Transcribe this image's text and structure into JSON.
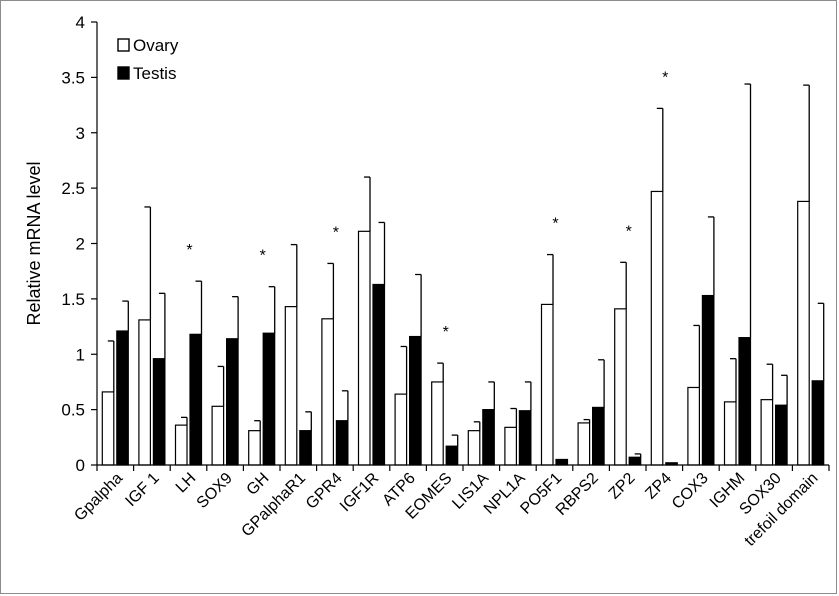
{
  "chart_data": {
    "type": "bar",
    "ylabel": "Relative mRNA  level",
    "ylim": [
      0,
      4
    ],
    "yticks": [
      "0",
      "0.5",
      "1",
      "1.5",
      "2",
      "2.5",
      "3",
      "3.5",
      "4"
    ],
    "grid": false,
    "legend_position": "top-left",
    "categories": [
      "Gpalpha",
      "IGF 1",
      "LH",
      "SOX9",
      "GH",
      "GPalphaR1",
      "GPR4",
      "IGF1R",
      "ATP6",
      "EOMES",
      "LIS1A",
      "NPL1A",
      "PO5F1",
      "RBPS2",
      "ZP2",
      "ZP4",
      "COX3",
      "IGHM",
      "SOX30",
      "trefoil domain"
    ],
    "series": [
      {
        "name": "Ovary",
        "fill": "#ffffff",
        "values": [
          0.66,
          1.31,
          0.36,
          0.53,
          0.31,
          1.43,
          1.32,
          2.11,
          0.64,
          0.75,
          0.31,
          0.34,
          1.45,
          0.38,
          1.41,
          2.47,
          0.7,
          0.57,
          0.59,
          2.38
        ],
        "errors": [
          0.46,
          1.02,
          0.07,
          0.36,
          0.09,
          0.56,
          0.5,
          0.49,
          0.43,
          0.17,
          0.08,
          0.17,
          0.45,
          0.03,
          0.42,
          0.75,
          0.56,
          0.39,
          0.32,
          1.05
        ]
      },
      {
        "name": "Testis",
        "fill": "#000000",
        "values": [
          1.21,
          0.96,
          1.18,
          1.14,
          1.19,
          0.31,
          0.4,
          1.63,
          1.16,
          0.17,
          0.5,
          0.49,
          0.05,
          0.52,
          0.07,
          0.02,
          1.53,
          1.15,
          0.54,
          0.76
        ],
        "errors": [
          0.27,
          0.59,
          0.48,
          0.38,
          0.42,
          0.17,
          0.27,
          0.56,
          0.56,
          0.1,
          0.25,
          0.26,
          0.0,
          0.43,
          0.03,
          0.0,
          0.71,
          2.29,
          0.27,
          0.7
        ]
      }
    ],
    "significance_marker": "*",
    "significant_categories": [
      "LH",
      "GH",
      "GPR4",
      "EOMES",
      "PO5F1",
      "ZP2",
      "ZP4"
    ]
  }
}
